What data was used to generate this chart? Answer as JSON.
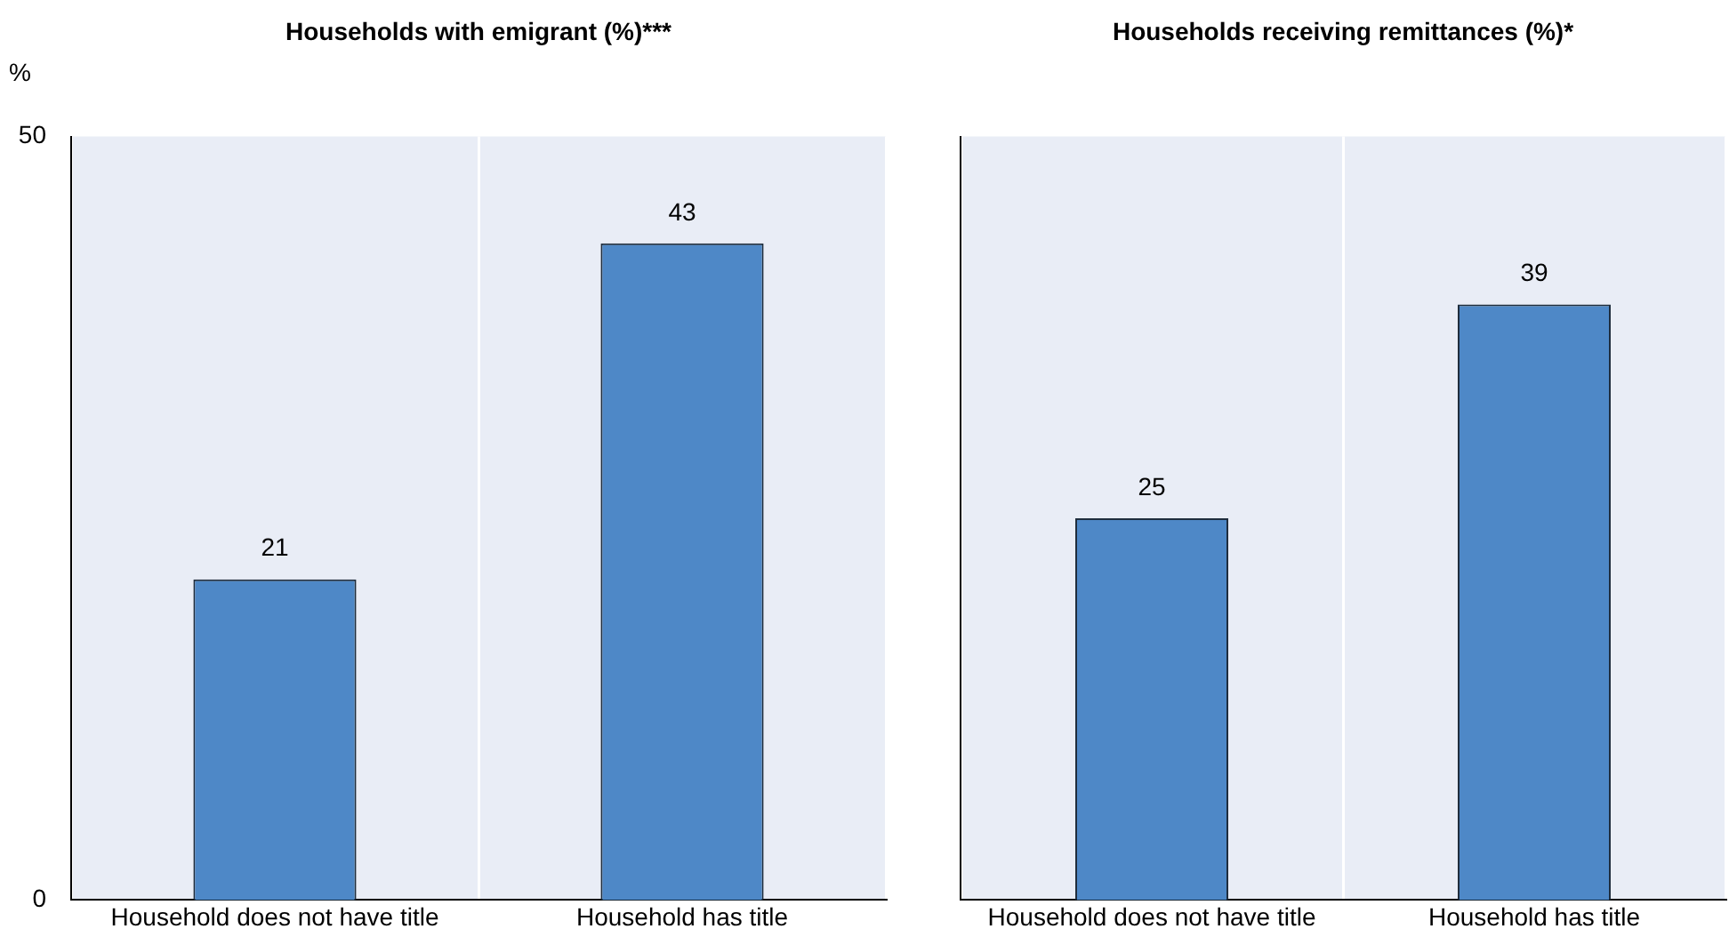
{
  "chart_data": [
    {
      "type": "bar",
      "title": "Households with emigrant (%)***",
      "ylabel": "%",
      "categories": [
        "Household does not have title",
        "Household has title"
      ],
      "values": [
        21,
        43
      ],
      "color": "#4e88c7",
      "ylim": [
        0,
        50
      ],
      "yticks": [
        0,
        50
      ],
      "grid": "x",
      "data_labels": true
    },
    {
      "type": "bar",
      "title": "Households receiving remittances (%)*",
      "categories": [
        "Household does not have title",
        "Household has title"
      ],
      "values": [
        25,
        39
      ],
      "color": "#4e88c7",
      "ylim": [
        0,
        50
      ],
      "grid": "x",
      "data_labels": true,
      "tick_labels": "x"
    }
  ]
}
